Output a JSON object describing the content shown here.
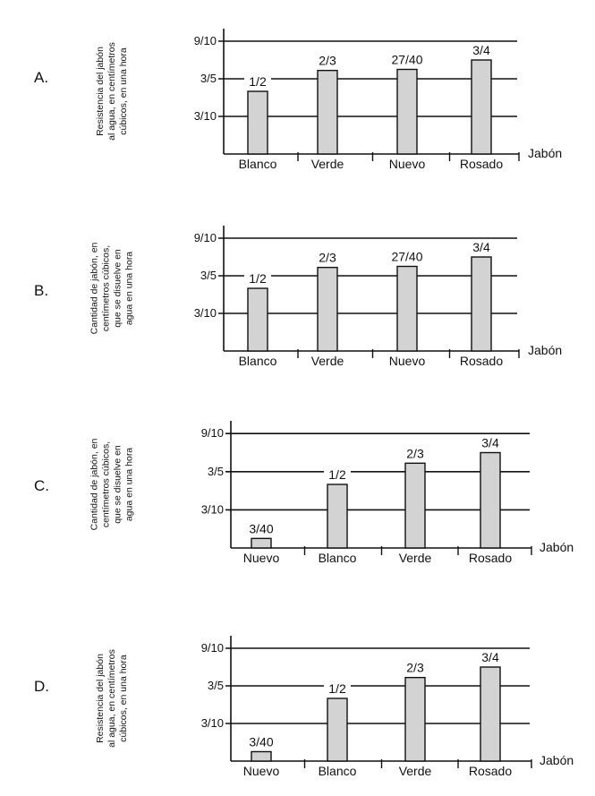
{
  "colors": {
    "bar_fill": "#d3d3d3",
    "ink": "#111111"
  },
  "chart_data": [
    {
      "type": "bar",
      "option_label": "A.",
      "ylabel": [
        "Resistencia del jabón",
        "al agua, en centímetros",
        "cúbicos, en una hora"
      ],
      "xlabel": "Jabón",
      "categories": [
        "Blanco",
        "Verde",
        "Nuevo",
        "Rosado"
      ],
      "values": [
        0.5,
        0.6667,
        0.675,
        0.75
      ],
      "data_labels": [
        "1/2",
        "2/3",
        "27/40",
        "3/4"
      ],
      "yticks": [
        0.3,
        0.6,
        0.9
      ],
      "ytick_labels": [
        "3/10",
        "3/5",
        "9/10"
      ],
      "ylim": [
        0,
        1.0
      ],
      "grid": true
    },
    {
      "type": "bar",
      "option_label": "B.",
      "ylabel": [
        "Cantidad de jabón, en",
        "centímetros cúbicos,",
        "que se disuelve en",
        "agua en una hora"
      ],
      "xlabel": "Jabón",
      "categories": [
        "Blanco",
        "Verde",
        "Nuevo",
        "Rosado"
      ],
      "values": [
        0.5,
        0.6667,
        0.675,
        0.75
      ],
      "data_labels": [
        "1/2",
        "2/3",
        "27/40",
        "3/4"
      ],
      "yticks": [
        0.3,
        0.6,
        0.9
      ],
      "ytick_labels": [
        "3/10",
        "3/5",
        "9/10"
      ],
      "ylim": [
        0,
        1.0
      ],
      "grid": true
    },
    {
      "type": "bar",
      "option_label": "C.",
      "ylabel": [
        "Cantidad de jabón, en",
        "centímetros cúbicos,",
        "que se disuelve en",
        "agua en una hora"
      ],
      "xlabel": "Jabón",
      "categories": [
        "Nuevo",
        "Blanco",
        "Verde",
        "Rosado"
      ],
      "values": [
        0.075,
        0.5,
        0.6667,
        0.75
      ],
      "data_labels": [
        "3/40",
        "1/2",
        "2/3",
        "3/4"
      ],
      "yticks": [
        0.3,
        0.6,
        0.9
      ],
      "ytick_labels": [
        "3/10",
        "3/5",
        "9/10"
      ],
      "ylim": [
        0,
        1.0
      ],
      "grid": true
    },
    {
      "type": "bar",
      "option_label": "D.",
      "ylabel": [
        "Resistencia del jabón",
        "al agua, en centímetros",
        "cúbicos, en una hora"
      ],
      "xlabel": "Jabón",
      "categories": [
        "Nuevo",
        "Blanco",
        "Verde",
        "Rosado"
      ],
      "values": [
        0.075,
        0.5,
        0.6667,
        0.75
      ],
      "data_labels": [
        "3/40",
        "1/2",
        "2/3",
        "3/4"
      ],
      "yticks": [
        0.3,
        0.6,
        0.9
      ],
      "ytick_labels": [
        "3/10",
        "3/5",
        "9/10"
      ],
      "ylim": [
        0,
        1.0
      ],
      "grid": true
    }
  ]
}
